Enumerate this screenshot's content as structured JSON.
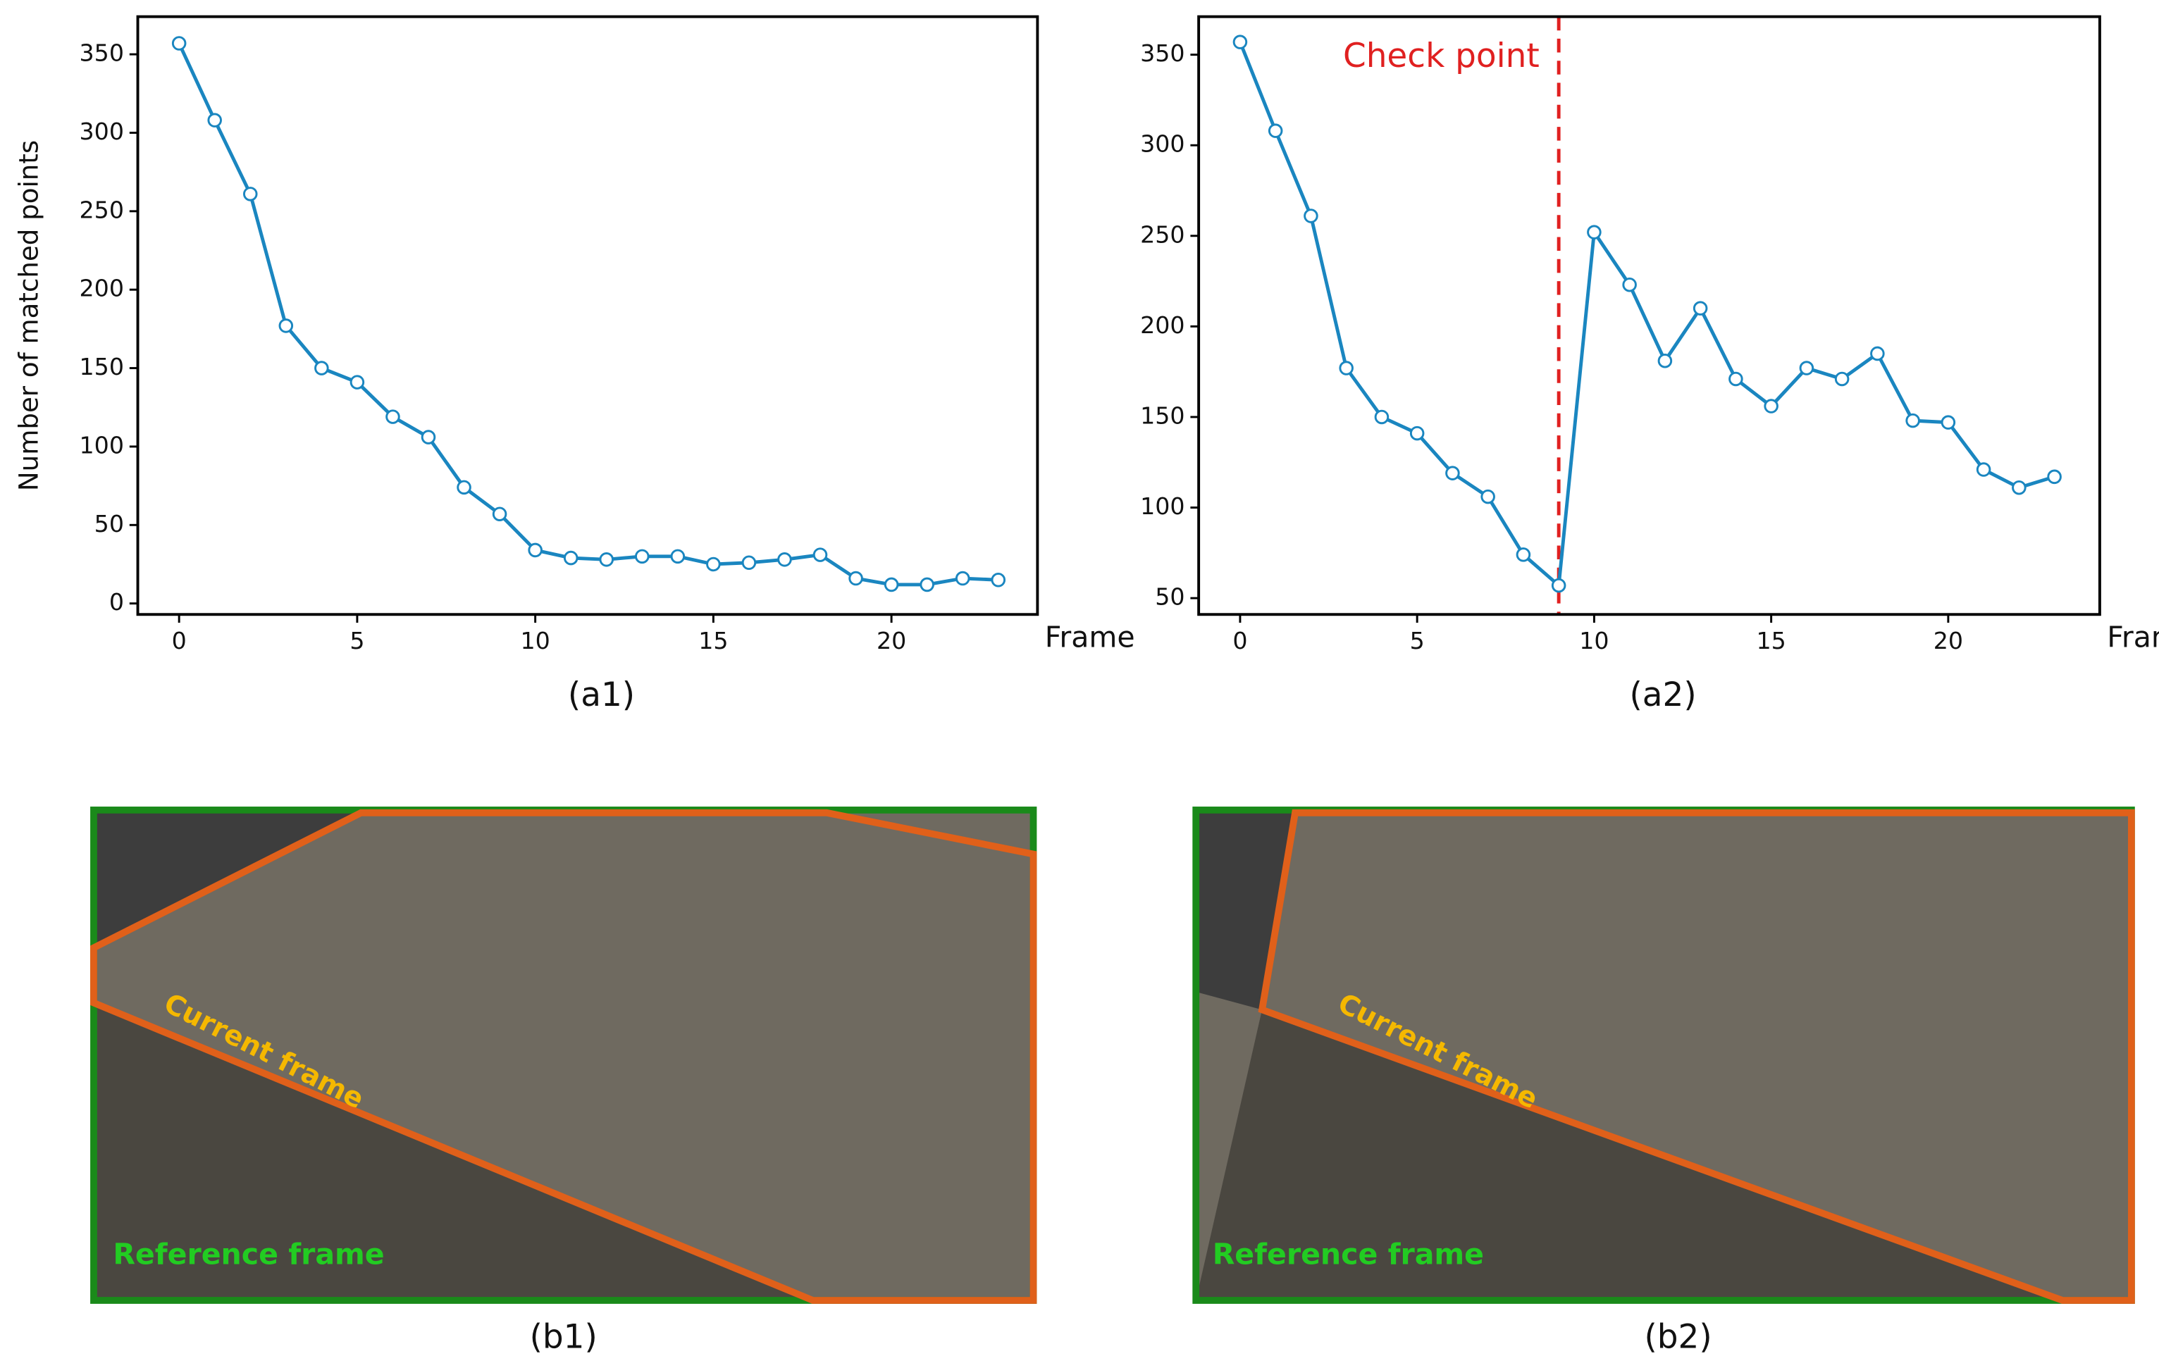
{
  "chart_data": [
    {
      "type": "line",
      "caption": "(a1)",
      "y_label": "Number of matched points",
      "x_label": "Frame",
      "x": [
        0,
        1,
        2,
        3,
        4,
        5,
        6,
        7,
        8,
        9,
        10,
        11,
        12,
        13,
        14,
        15,
        16,
        17,
        18,
        19,
        20,
        21,
        22,
        23
      ],
      "series": [
        {
          "color": "#1a86c0",
          "values": [
            357,
            308,
            261,
            177,
            150,
            141,
            119,
            106,
            74,
            57,
            34,
            29,
            28,
            30,
            30,
            25,
            26,
            28,
            31,
            16,
            12,
            12,
            16,
            15
          ]
        }
      ],
      "xlim": [
        -1.16,
        24.1
      ],
      "ylim": [
        -7,
        374
      ],
      "xticks": [
        0,
        5,
        10,
        15,
        20
      ],
      "yticks": [
        0,
        50,
        100,
        150,
        200,
        250,
        300,
        350
      ]
    },
    {
      "type": "line",
      "caption": "(a2)",
      "x_label": "Frame",
      "x": [
        0,
        1,
        2,
        3,
        4,
        5,
        6,
        7,
        8,
        9,
        10,
        11,
        12,
        13,
        14,
        15,
        16,
        17,
        18,
        19,
        20,
        21,
        22,
        23
      ],
      "series": [
        {
          "color": "#1a86c0",
          "values": [
            357,
            308,
            261,
            177,
            150,
            141,
            119,
            106,
            74,
            57,
            252,
            223,
            181,
            210,
            171,
            156,
            177,
            171,
            185,
            148,
            147,
            121,
            111,
            117
          ]
        }
      ],
      "xlim": [
        -1.17,
        24.28
      ],
      "ylim": [
        41,
        371
      ],
      "xticks": [
        0,
        5,
        10,
        15,
        20
      ],
      "yticks": [
        50,
        100,
        150,
        200,
        250,
        300,
        350
      ],
      "vline": {
        "x": 9,
        "label": "Check point",
        "color": "#e02020"
      }
    }
  ],
  "images": [
    {
      "caption": "(b1)",
      "current_label": "Current frame",
      "reference_label": "Reference frame"
    },
    {
      "caption": "(b2)",
      "current_label": "Current frame",
      "reference_label": "Reference frame"
    }
  ]
}
